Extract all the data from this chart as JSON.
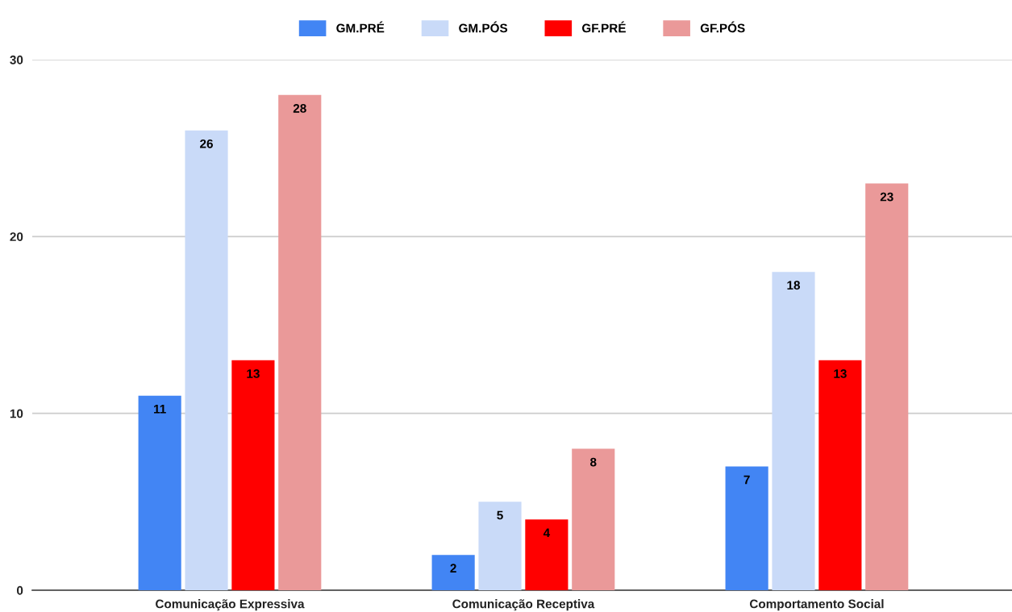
{
  "chart_data": {
    "type": "bar",
    "categories": [
      "Comunicação Expressiva",
      "Comunicação Receptiva",
      "Comportamento Social"
    ],
    "series": [
      {
        "name": "GM.PRÉ",
        "color": "#4285f4",
        "values": [
          11,
          2,
          7
        ]
      },
      {
        "name": "GM.PÓS",
        "color": "#c9daf8",
        "values": [
          26,
          5,
          18
        ]
      },
      {
        "name": "GF.PRÉ",
        "color": "#ff0000",
        "values": [
          13,
          4,
          13
        ]
      },
      {
        "name": "GF.PÓS",
        "color": "#ea9999",
        "values": [
          28,
          8,
          23
        ]
      }
    ],
    "ylim": [
      0,
      30
    ],
    "yticks": [
      0,
      10,
      20,
      30
    ],
    "grid": "y",
    "legend": "top",
    "data_labels": true
  }
}
